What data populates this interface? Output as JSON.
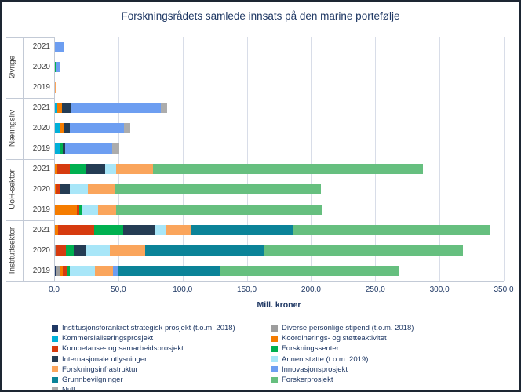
{
  "title": "Forskningsrådets samlede innsats på den marine portefølje",
  "x_axis_title": "Mill. kroner",
  "chart_data": {
    "type": "bar",
    "orientation": "horizontal-stacked",
    "title": "Forskningsrådets samlede innsats på den marine portefølje",
    "xlabel": "Mill. kroner",
    "xlim": [
      0,
      350
    ],
    "grid": true,
    "legend_position": "bottom",
    "x_ticks": [
      {
        "value": 0,
        "label": "0,0"
      },
      {
        "value": 50,
        "label": "50,0"
      },
      {
        "value": 100,
        "label": "100,0"
      },
      {
        "value": 150,
        "label": "150,0"
      },
      {
        "value": 200,
        "label": "200,0"
      },
      {
        "value": 250,
        "label": "250,0"
      },
      {
        "value": 300,
        "label": "300,0"
      },
      {
        "value": 350,
        "label": "350,0"
      }
    ],
    "series": [
      {
        "name": "Institusjonsforankret strategisk prosjekt (t.o.m. 2018)",
        "color": "#1F3864"
      },
      {
        "name": "Diverse personlige stipend (t.o.m. 2018)",
        "color": "#9D9D9D"
      },
      {
        "name": "Kommersialiseringsprosjekt",
        "color": "#00B0D8"
      },
      {
        "name": "Koordinerings- og støtteaktivitet",
        "color": "#F57C00"
      },
      {
        "name": "Kompetanse- og samarbeidsprosjekt",
        "color": "#D63B0F"
      },
      {
        "name": "Forskningssenter",
        "color": "#00B050"
      },
      {
        "name": "Internasjonale utlysninger",
        "color": "#243C54"
      },
      {
        "name": "Annen støtte (t.o.m. 2019)",
        "color": "#A8E6F8"
      },
      {
        "name": "Forskningsinfrastruktur",
        "color": "#FAA55C"
      },
      {
        "name": "Innovasjonsprosjekt",
        "color": "#6D9EF1"
      },
      {
        "name": "Grunnbevilgninger",
        "color": "#0B8398"
      },
      {
        "name": "Forskerprosjekt",
        "color": "#66BF7F"
      },
      {
        "name": "Null",
        "color": "#ACACAC"
      }
    ],
    "groups": [
      {
        "label": "Øvrige",
        "rows": [
          {
            "year": "2021",
            "segments": [
              [
                "Innovasjonsprosjekt",
                8
              ]
            ]
          },
          {
            "year": "2020",
            "segments": [
              [
                "Forskningssenter",
                1
              ],
              [
                "Innovasjonsprosjekt",
                3.5
              ]
            ]
          },
          {
            "year": "2019",
            "segments": [
              [
                "Forskningsinfrastruktur",
                1
              ],
              [
                "Null",
                0.8
              ]
            ]
          }
        ]
      },
      {
        "label": "Næringsliv",
        "rows": [
          {
            "year": "2021",
            "segments": [
              [
                "Kommersialiseringsprosjekt",
                2.5
              ],
              [
                "Koordinerings- og støtteaktivitet",
                3.5
              ],
              [
                "Internasjonale utlysninger",
                7.5
              ],
              [
                "Innovasjonsprosjekt",
                69.5
              ],
              [
                "Null",
                5
              ]
            ]
          },
          {
            "year": "2020",
            "segments": [
              [
                "Kommersialiseringsprosjekt",
                4.5
              ],
              [
                "Koordinerings- og støtteaktivitet",
                3.5
              ],
              [
                "Internasjonale utlysninger",
                4
              ],
              [
                "Innovasjonsprosjekt",
                42.5
              ],
              [
                "Null",
                5
              ]
            ]
          },
          {
            "year": "2019",
            "segments": [
              [
                "Kommersialiseringsprosjekt",
                5
              ],
              [
                "Forskningssenter",
                1.5
              ],
              [
                "Internasjonale utlysninger",
                2
              ],
              [
                "Innovasjonsprosjekt",
                36.5
              ],
              [
                "Null",
                5.5
              ]
            ]
          }
        ]
      },
      {
        "label": "UoH-sektor",
        "rows": [
          {
            "year": "2021",
            "segments": [
              [
                "Koordinerings- og støtteaktivitet",
                2.5
              ],
              [
                "Kompetanse- og samarbeidsprosjekt",
                9.5
              ],
              [
                "Forskningssenter",
                12.5
              ],
              [
                "Internasjonale utlysninger",
                15.5
              ],
              [
                "Annen støtte (t.o.m. 2019)",
                8
              ],
              [
                "Forskningsinfrastruktur",
                29
              ],
              [
                "Forskerprosjekt",
                210
              ]
            ]
          },
          {
            "year": "2020",
            "segments": [
              [
                "Koordinerings- og støtteaktivitet",
                2
              ],
              [
                "Kompetanse- og samarbeidsprosjekt",
                2.5
              ],
              [
                "Internasjonale utlysninger",
                7.5
              ],
              [
                "Annen støtte (t.o.m. 2019)",
                14.5
              ],
              [
                "Forskningsinfrastruktur",
                21
              ],
              [
                "Forskerprosjekt",
                160
              ]
            ]
          },
          {
            "year": "2019",
            "segments": [
              [
                "Koordinerings- og støtteaktivitet",
                18
              ],
              [
                "Kompetanse- og samarbeidsprosjekt",
                1.5
              ],
              [
                "Forskningssenter",
                2
              ],
              [
                "Annen støtte (t.o.m. 2019)",
                13
              ],
              [
                "Forskningsinfrastruktur",
                14
              ],
              [
                "Forskerprosjekt",
                160
              ]
            ]
          }
        ]
      },
      {
        "label": "Instituttsektor",
        "rows": [
          {
            "year": "2021",
            "segments": [
              [
                "Koordinerings- og støtteaktivitet",
                3
              ],
              [
                "Kompetanse- og samarbeidsprosjekt",
                28
              ],
              [
                "Forskningssenter",
                23
              ],
              [
                "Internasjonale utlysninger",
                24
              ],
              [
                "Annen støtte (t.o.m. 2019)",
                9
              ],
              [
                "Forskningsinfrastruktur",
                20
              ],
              [
                "Grunnbevilgninger",
                79
              ],
              [
                "Forskerprosjekt",
                153
              ]
            ]
          },
          {
            "year": "2020",
            "segments": [
              [
                "Diverse personlige stipend (t.o.m. 2018)",
                1.5
              ],
              [
                "Kompetanse- og samarbeidsprosjekt",
                7.5
              ],
              [
                "Forskningssenter",
                6
              ],
              [
                "Internasjonale utlysninger",
                10
              ],
              [
                "Annen støtte (t.o.m. 2019)",
                18.5
              ],
              [
                "Forskningsinfrastruktur",
                27.5
              ],
              [
                "Grunnbevilgninger",
                93
              ],
              [
                "Forskerprosjekt",
                154
              ]
            ]
          },
          {
            "year": "2019",
            "segments": [
              [
                "Institusjonsforankret strategisk prosjekt (t.o.m. 2018)",
                1.5
              ],
              [
                "Diverse personlige stipend (t.o.m. 2018)",
                2.5
              ],
              [
                "Koordinerings- og støtteaktivitet",
                3
              ],
              [
                "Kompetanse- og samarbeidsprosjekt",
                3
              ],
              [
                "Forskningssenter",
                2.5
              ],
              [
                "Annen støtte (t.o.m. 2019)",
                19
              ],
              [
                "Forskningsinfrastruktur",
                14.5
              ],
              [
                "Innovasjonsprosjekt",
                4
              ],
              [
                "Grunnbevilgninger",
                79
              ],
              [
                "Forskerprosjekt",
                140
              ]
            ]
          }
        ]
      }
    ]
  },
  "legend": {
    "columns": [
      [
        "Institusjonsforankret strategisk prosjekt (t.o.m. 2018)",
        "Kommersialiseringsprosjekt",
        "Kompetanse- og samarbeidsprosjekt",
        "Internasjonale utlysninger",
        "Forskningsinfrastruktur",
        "Grunnbevilgninger",
        "Null"
      ],
      [
        "Diverse personlige stipend (t.o.m. 2018)",
        "Koordinerings- og støtteaktivitet",
        "Forskningssenter",
        "Annen støtte (t.o.m. 2019)",
        "Innovasjonsprosjekt",
        "Forskerprosjekt"
      ]
    ]
  }
}
